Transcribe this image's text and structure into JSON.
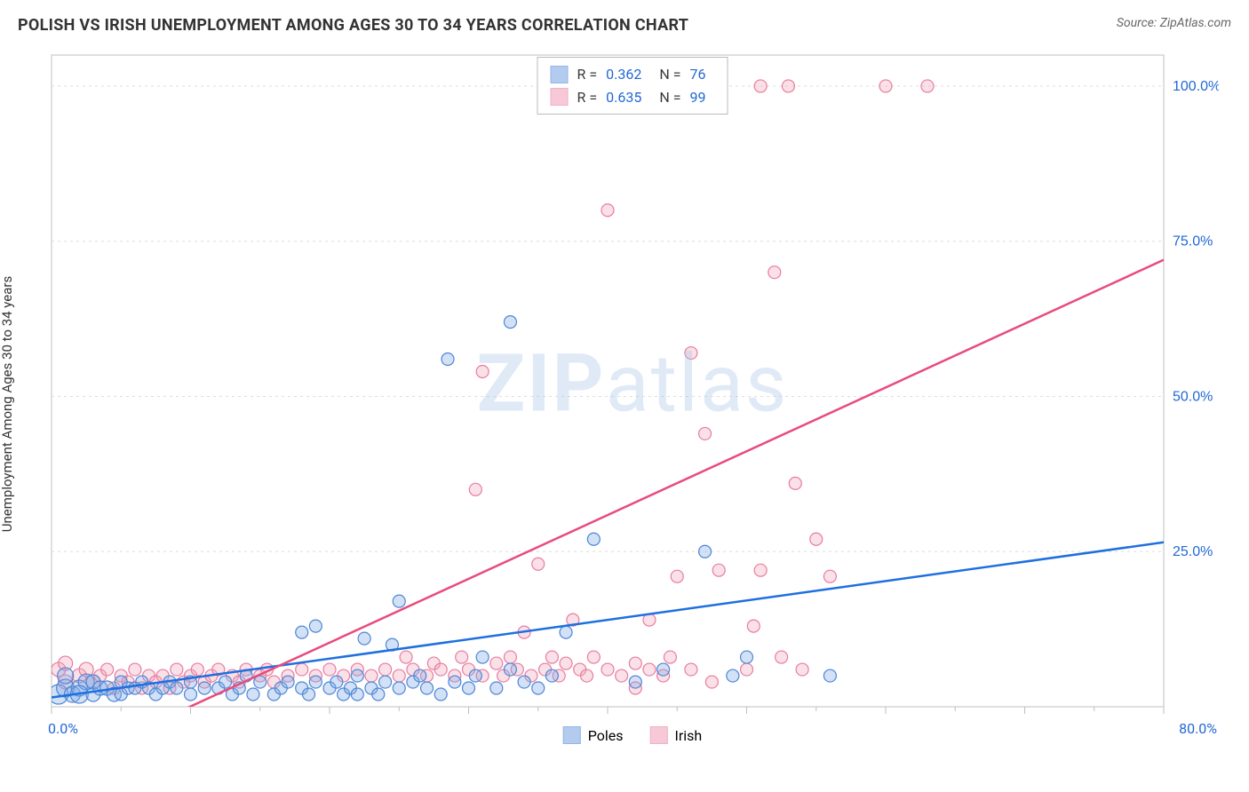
{
  "title": "POLISH VS IRISH UNEMPLOYMENT AMONG AGES 30 TO 34 YEARS CORRELATION CHART",
  "source": "Source: ZipAtlas.com",
  "ylabel": "Unemployment Among Ages 30 to 34 years",
  "watermark_a": "ZIP",
  "watermark_b": "atlas",
  "chart": {
    "type": "scatter",
    "background_color": "#ffffff",
    "grid_color": "#dddddd",
    "axis_color": "#bfbfbf",
    "xlim": [
      0,
      80
    ],
    "ylim": [
      0,
      105
    ],
    "xtick_step": 10,
    "ytick_labels": [
      {
        "v": 25,
        "t": "25.0%"
      },
      {
        "v": 50,
        "t": "50.0%"
      },
      {
        "v": 75,
        "t": "75.0%"
      },
      {
        "v": 100,
        "t": "100.0%"
      }
    ],
    "xtick_origin": "0.0%",
    "xtick_max": "80.0%",
    "series": [
      {
        "name": "Poles",
        "color_fill": "#7fa9e6",
        "color_stroke": "#4e86d6",
        "fill_opacity": 0.35,
        "marker_r": 7,
        "stats": {
          "R": "0.362",
          "N": "76"
        },
        "trend": {
          "x1": 0,
          "y1": 1.5,
          "x2": 80,
          "y2": 26.5,
          "color": "#1e6fe0",
          "width": 2.5
        },
        "points": [
          {
            "x": 0.5,
            "y": 2,
            "r": 11
          },
          {
            "x": 1,
            "y": 3,
            "r": 10
          },
          {
            "x": 1.5,
            "y": 2,
            "r": 9
          },
          {
            "x": 1,
            "y": 5,
            "r": 9
          },
          {
            "x": 2,
            "y": 3,
            "r": 9
          },
          {
            "x": 2.5,
            "y": 4,
            "r": 9
          },
          {
            "x": 2,
            "y": 2,
            "r": 10
          },
          {
            "x": 3,
            "y": 2,
            "r": 8
          },
          {
            "x": 3,
            "y": 4,
            "r": 8
          },
          {
            "x": 3.5,
            "y": 3,
            "r": 8
          },
          {
            "x": 4,
            "y": 3,
            "r": 8
          },
          {
            "x": 4.5,
            "y": 2,
            "r": 8
          },
          {
            "x": 5,
            "y": 4,
            "r": 7
          },
          {
            "x": 5,
            "y": 2,
            "r": 7
          },
          {
            "x": 5.5,
            "y": 3,
            "r": 7
          },
          {
            "x": 6,
            "y": 3,
            "r": 7
          },
          {
            "x": 6.5,
            "y": 4,
            "r": 7
          },
          {
            "x": 7,
            "y": 3,
            "r": 7
          },
          {
            "x": 7.5,
            "y": 2,
            "r": 7
          },
          {
            "x": 8,
            "y": 3,
            "r": 7
          },
          {
            "x": 8.5,
            "y": 4,
            "r": 7
          },
          {
            "x": 9,
            "y": 3,
            "r": 7
          },
          {
            "x": 10,
            "y": 4,
            "r": 7
          },
          {
            "x": 10,
            "y": 2,
            "r": 7
          },
          {
            "x": 11,
            "y": 3,
            "r": 7
          },
          {
            "x": 12,
            "y": 3,
            "r": 7
          },
          {
            "x": 12.5,
            "y": 4,
            "r": 7
          },
          {
            "x": 13,
            "y": 2,
            "r": 7
          },
          {
            "x": 13.5,
            "y": 3,
            "r": 7
          },
          {
            "x": 14,
            "y": 5,
            "r": 7
          },
          {
            "x": 14.5,
            "y": 2,
            "r": 7
          },
          {
            "x": 15,
            "y": 4,
            "r": 7
          },
          {
            "x": 16,
            "y": 2,
            "r": 7
          },
          {
            "x": 16.5,
            "y": 3,
            "r": 7
          },
          {
            "x": 17,
            "y": 4,
            "r": 7
          },
          {
            "x": 18,
            "y": 3,
            "r": 7
          },
          {
            "x": 18.5,
            "y": 2,
            "r": 7
          },
          {
            "x": 19,
            "y": 4,
            "r": 7
          },
          {
            "x": 18,
            "y": 12,
            "r": 7
          },
          {
            "x": 19,
            "y": 13,
            "r": 7
          },
          {
            "x": 20,
            "y": 3,
            "r": 7
          },
          {
            "x": 20.5,
            "y": 4,
            "r": 7
          },
          {
            "x": 21,
            "y": 2,
            "r": 7
          },
          {
            "x": 21.5,
            "y": 3,
            "r": 7
          },
          {
            "x": 22,
            "y": 5,
            "r": 7
          },
          {
            "x": 22,
            "y": 2,
            "r": 7
          },
          {
            "x": 22.5,
            "y": 11,
            "r": 7
          },
          {
            "x": 23,
            "y": 3,
            "r": 7
          },
          {
            "x": 23.5,
            "y": 2,
            "r": 7
          },
          {
            "x": 24,
            "y": 4,
            "r": 7
          },
          {
            "x": 24.5,
            "y": 10,
            "r": 7
          },
          {
            "x": 25,
            "y": 3,
            "r": 7
          },
          {
            "x": 25,
            "y": 17,
            "r": 7
          },
          {
            "x": 26,
            "y": 4,
            "r": 7
          },
          {
            "x": 26.5,
            "y": 5,
            "r": 7
          },
          {
            "x": 27,
            "y": 3,
            "r": 7
          },
          {
            "x": 28,
            "y": 2,
            "r": 7
          },
          {
            "x": 28.5,
            "y": 56,
            "r": 7
          },
          {
            "x": 29,
            "y": 4,
            "r": 7
          },
          {
            "x": 30,
            "y": 3,
            "r": 7
          },
          {
            "x": 30.5,
            "y": 5,
            "r": 7
          },
          {
            "x": 31,
            "y": 8,
            "r": 7
          },
          {
            "x": 32,
            "y": 3,
            "r": 7
          },
          {
            "x": 33,
            "y": 6,
            "r": 7
          },
          {
            "x": 33,
            "y": 62,
            "r": 7
          },
          {
            "x": 34,
            "y": 4,
            "r": 7
          },
          {
            "x": 35,
            "y": 3,
            "r": 7
          },
          {
            "x": 36,
            "y": 5,
            "r": 7
          },
          {
            "x": 37,
            "y": 12,
            "r": 7
          },
          {
            "x": 39,
            "y": 27,
            "r": 7
          },
          {
            "x": 42,
            "y": 4,
            "r": 7
          },
          {
            "x": 44,
            "y": 6,
            "r": 7
          },
          {
            "x": 47,
            "y": 25,
            "r": 7
          },
          {
            "x": 49,
            "y": 5,
            "r": 7
          },
          {
            "x": 56,
            "y": 5,
            "r": 7
          },
          {
            "x": 50,
            "y": 8,
            "r": 7
          }
        ]
      },
      {
        "name": "Irish",
        "color_fill": "#f2a6bb",
        "color_stroke": "#e97ca0",
        "fill_opacity": 0.35,
        "marker_r": 7,
        "stats": {
          "R": "0.635",
          "N": "99"
        },
        "trend": {
          "x1": 8,
          "y1": -2,
          "x2": 80,
          "y2": 72,
          "color": "#e94b7c",
          "width": 2.5
        },
        "points": [
          {
            "x": 0.5,
            "y": 6,
            "r": 8
          },
          {
            "x": 1,
            "y": 4,
            "r": 8
          },
          {
            "x": 1,
            "y": 7,
            "r": 8
          },
          {
            "x": 2,
            "y": 5,
            "r": 8
          },
          {
            "x": 2.5,
            "y": 6,
            "r": 8
          },
          {
            "x": 3,
            "y": 4,
            "r": 8
          },
          {
            "x": 3.5,
            "y": 5,
            "r": 7
          },
          {
            "x": 4,
            "y": 6,
            "r": 7
          },
          {
            "x": 4.5,
            "y": 3,
            "r": 7
          },
          {
            "x": 5,
            "y": 5,
            "r": 7
          },
          {
            "x": 5.5,
            "y": 4,
            "r": 7
          },
          {
            "x": 6,
            "y": 6,
            "r": 7
          },
          {
            "x": 6.5,
            "y": 3,
            "r": 7
          },
          {
            "x": 7,
            "y": 5,
            "r": 7
          },
          {
            "x": 7.5,
            "y": 4,
            "r": 7
          },
          {
            "x": 8,
            "y": 5,
            "r": 7
          },
          {
            "x": 8.5,
            "y": 3,
            "r": 7
          },
          {
            "x": 9,
            "y": 6,
            "r": 7
          },
          {
            "x": 9.5,
            "y": 4,
            "r": 7
          },
          {
            "x": 10,
            "y": 5,
            "r": 7
          },
          {
            "x": 10.5,
            "y": 6,
            "r": 7
          },
          {
            "x": 11,
            "y": 4,
            "r": 7
          },
          {
            "x": 11.5,
            "y": 5,
            "r": 7
          },
          {
            "x": 12,
            "y": 6,
            "r": 7
          },
          {
            "x": 13,
            "y": 5,
            "r": 7
          },
          {
            "x": 13.5,
            "y": 4,
            "r": 7
          },
          {
            "x": 14,
            "y": 6,
            "r": 7
          },
          {
            "x": 15,
            "y": 5,
            "r": 7
          },
          {
            "x": 15.5,
            "y": 6,
            "r": 7
          },
          {
            "x": 16,
            "y": 4,
            "r": 7
          },
          {
            "x": 17,
            "y": 5,
            "r": 7
          },
          {
            "x": 18,
            "y": 6,
            "r": 7
          },
          {
            "x": 19,
            "y": 5,
            "r": 7
          },
          {
            "x": 20,
            "y": 6,
            "r": 7
          },
          {
            "x": 21,
            "y": 5,
            "r": 7
          },
          {
            "x": 22,
            "y": 6,
            "r": 7
          },
          {
            "x": 23,
            "y": 5,
            "r": 7
          },
          {
            "x": 24,
            "y": 6,
            "r": 7
          },
          {
            "x": 25,
            "y": 5,
            "r": 7
          },
          {
            "x": 25.5,
            "y": 8,
            "r": 7
          },
          {
            "x": 26,
            "y": 6,
            "r": 7
          },
          {
            "x": 27,
            "y": 5,
            "r": 7
          },
          {
            "x": 27.5,
            "y": 7,
            "r": 7
          },
          {
            "x": 28,
            "y": 6,
            "r": 7
          },
          {
            "x": 29,
            "y": 5,
            "r": 7
          },
          {
            "x": 29.5,
            "y": 8,
            "r": 7
          },
          {
            "x": 30,
            "y": 6,
            "r": 7
          },
          {
            "x": 30.5,
            "y": 35,
            "r": 7
          },
          {
            "x": 31,
            "y": 5,
            "r": 7
          },
          {
            "x": 31,
            "y": 54,
            "r": 7
          },
          {
            "x": 32,
            "y": 7,
            "r": 7
          },
          {
            "x": 32.5,
            "y": 5,
            "r": 7
          },
          {
            "x": 33,
            "y": 8,
            "r": 7
          },
          {
            "x": 33.5,
            "y": 6,
            "r": 7
          },
          {
            "x": 34,
            "y": 12,
            "r": 7
          },
          {
            "x": 34.5,
            "y": 5,
            "r": 7
          },
          {
            "x": 35,
            "y": 23,
            "r": 7
          },
          {
            "x": 35.5,
            "y": 6,
            "r": 7
          },
          {
            "x": 36,
            "y": 8,
            "r": 7
          },
          {
            "x": 36.5,
            "y": 5,
            "r": 7
          },
          {
            "x": 37,
            "y": 7,
            "r": 7
          },
          {
            "x": 37.5,
            "y": 14,
            "r": 7
          },
          {
            "x": 38,
            "y": 6,
            "r": 7
          },
          {
            "x": 38.5,
            "y": 5,
            "r": 7
          },
          {
            "x": 39,
            "y": 8,
            "r": 7
          },
          {
            "x": 40,
            "y": 80,
            "r": 7
          },
          {
            "x": 40,
            "y": 6,
            "r": 7
          },
          {
            "x": 41,
            "y": 5,
            "r": 7
          },
          {
            "x": 42,
            "y": 7,
            "r": 7
          },
          {
            "x": 42,
            "y": 3,
            "r": 7
          },
          {
            "x": 43,
            "y": 14,
            "r": 7
          },
          {
            "x": 43,
            "y": 6,
            "r": 7
          },
          {
            "x": 44,
            "y": 5,
            "r": 7
          },
          {
            "x": 44.5,
            "y": 8,
            "r": 7
          },
          {
            "x": 45,
            "y": 21,
            "r": 7
          },
          {
            "x": 46,
            "y": 57,
            "r": 7
          },
          {
            "x": 46,
            "y": 6,
            "r": 7
          },
          {
            "x": 47,
            "y": 44,
            "r": 7
          },
          {
            "x": 47.5,
            "y": 4,
            "r": 7
          },
          {
            "x": 48,
            "y": 22,
            "r": 7
          },
          {
            "x": 48,
            "y": 100,
            "r": 7
          },
          {
            "x": 50,
            "y": 6,
            "r": 7
          },
          {
            "x": 50.5,
            "y": 13,
            "r": 7
          },
          {
            "x": 51,
            "y": 100,
            "r": 7
          },
          {
            "x": 51,
            "y": 22,
            "r": 7
          },
          {
            "x": 52,
            "y": 70,
            "r": 7
          },
          {
            "x": 52.5,
            "y": 8,
            "r": 7
          },
          {
            "x": 53,
            "y": 100,
            "r": 7
          },
          {
            "x": 53.5,
            "y": 36,
            "r": 7
          },
          {
            "x": 54,
            "y": 6,
            "r": 7
          },
          {
            "x": 55,
            "y": 27,
            "r": 7
          },
          {
            "x": 56,
            "y": 21,
            "r": 7
          },
          {
            "x": 60,
            "y": 100,
            "r": 7
          },
          {
            "x": 63,
            "y": 100,
            "r": 7
          }
        ]
      }
    ],
    "bottom_legend": [
      {
        "label": "Poles",
        "fill": "#7fa9e6",
        "stroke": "#4e86d6"
      },
      {
        "label": "Irish",
        "fill": "#f2a6bb",
        "stroke": "#e97ca0"
      }
    ]
  }
}
